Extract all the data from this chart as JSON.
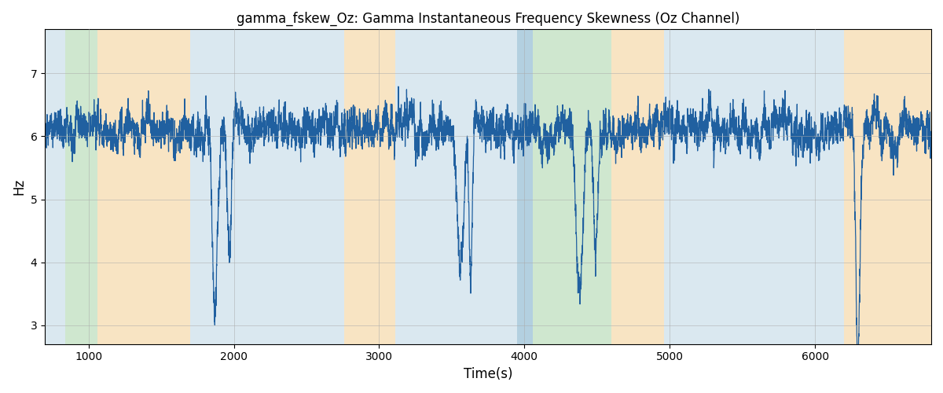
{
  "title": "gamma_fskew_Oz: Gamma Instantaneous Frequency Skewness (Oz Channel)",
  "xlabel": "Time(s)",
  "ylabel": "Hz",
  "xlim": [
    700,
    6800
  ],
  "ylim": [
    2.7,
    7.7
  ],
  "yticks": [
    3,
    4,
    5,
    6,
    7
  ],
  "line_color": "#2060a0",
  "line_width": 0.9,
  "background_color": "#ffffff",
  "grid_color": "#aaaaaa",
  "bands": [
    {
      "xmin": 700,
      "xmax": 840,
      "color": "#aeccde",
      "alpha": 0.45
    },
    {
      "xmin": 840,
      "xmax": 1060,
      "color": "#8ec88e",
      "alpha": 0.42
    },
    {
      "xmin": 1060,
      "xmax": 1700,
      "color": "#f0c070",
      "alpha": 0.42
    },
    {
      "xmin": 1700,
      "xmax": 2760,
      "color": "#aeccde",
      "alpha": 0.45
    },
    {
      "xmin": 2760,
      "xmax": 3110,
      "color": "#f0c070",
      "alpha": 0.42
    },
    {
      "xmin": 3110,
      "xmax": 3950,
      "color": "#aeccde",
      "alpha": 0.45
    },
    {
      "xmin": 3950,
      "xmax": 4060,
      "color": "#8ab8d0",
      "alpha": 0.65
    },
    {
      "xmin": 4060,
      "xmax": 4600,
      "color": "#8ec88e",
      "alpha": 0.42
    },
    {
      "xmin": 4600,
      "xmax": 4960,
      "color": "#f0c070",
      "alpha": 0.42
    },
    {
      "xmin": 4960,
      "xmax": 6200,
      "color": "#aeccde",
      "alpha": 0.45
    },
    {
      "xmin": 6200,
      "xmax": 6800,
      "color": "#f0c070",
      "alpha": 0.42
    }
  ],
  "figsize": [
    12.0,
    5.0
  ],
  "dpi": 100
}
